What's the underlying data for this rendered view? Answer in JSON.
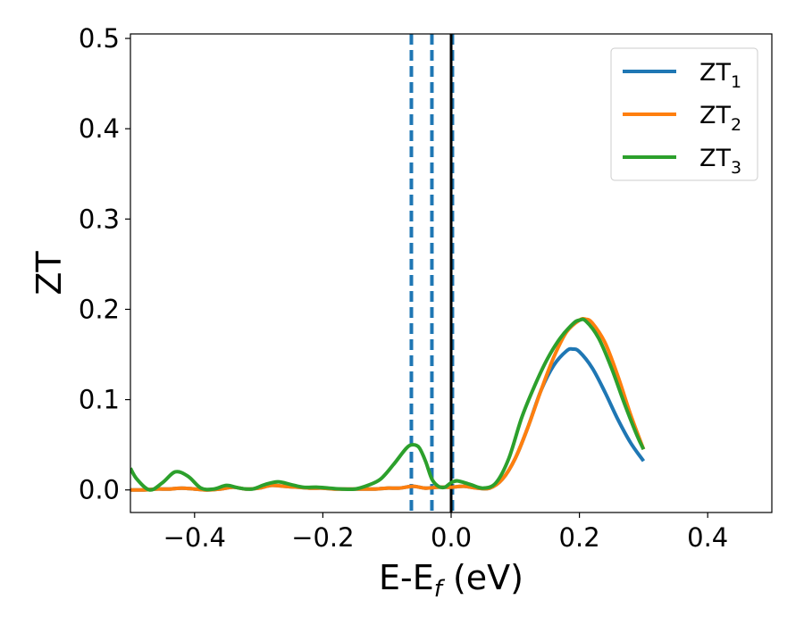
{
  "chart_data": {
    "type": "line",
    "xlabel": "E-E",
    "xlabel_sub": "f",
    "xlabel_unit": " (eV)",
    "ylabel": "ZT",
    "xlim": [
      -0.5,
      0.5
    ],
    "ylim": [
      -0.025,
      0.505
    ],
    "xticks": [
      -0.4,
      -0.2,
      0.0,
      0.2,
      0.4
    ],
    "xtick_labels": [
      "−0.4",
      "−0.2",
      "0.0",
      "0.2",
      "0.4"
    ],
    "yticks": [
      0.0,
      0.1,
      0.2,
      0.3,
      0.4,
      0.5
    ],
    "ytick_labels": [
      "0.0",
      "0.1",
      "0.2",
      "0.3",
      "0.4",
      "0.5"
    ],
    "grid": false,
    "legend_position": "top-right",
    "vertical_lines": [
      {
        "x": -0.062,
        "style": "dashed",
        "color": "#1f77b4"
      },
      {
        "x": -0.03,
        "style": "dashed",
        "color": "#1f77b4"
      },
      {
        "x": 0.002,
        "style": "dashed",
        "color": "#1f77b4"
      },
      {
        "x": 0.0,
        "style": "solid",
        "color": "#000000"
      }
    ],
    "series": [
      {
        "name": "ZT",
        "name_sub": "1",
        "color": "#1f77b4",
        "x": [
          -0.5,
          -0.48,
          -0.46,
          -0.44,
          -0.42,
          -0.4,
          -0.38,
          -0.36,
          -0.34,
          -0.32,
          -0.3,
          -0.28,
          -0.26,
          -0.24,
          -0.22,
          -0.2,
          -0.18,
          -0.16,
          -0.14,
          -0.12,
          -0.1,
          -0.08,
          -0.06,
          -0.04,
          -0.02,
          0.0,
          0.02,
          0.04,
          0.06,
          0.08,
          0.1,
          0.12,
          0.14,
          0.16,
          0.18,
          0.19,
          0.2,
          0.22,
          0.24,
          0.26,
          0.28,
          0.3
        ],
        "y": [
          0.0,
          0.0,
          0.001,
          0.001,
          0.002,
          0.001,
          0.0,
          0.001,
          0.003,
          0.001,
          0.002,
          0.005,
          0.004,
          0.003,
          0.002,
          0.002,
          0.001,
          0.001,
          0.001,
          0.001,
          0.002,
          0.002,
          0.004,
          0.002,
          0.003,
          0.003,
          0.004,
          0.002,
          0.002,
          0.012,
          0.035,
          0.07,
          0.11,
          0.138,
          0.154,
          0.156,
          0.153,
          0.135,
          0.108,
          0.078,
          0.052,
          0.032
        ]
      },
      {
        "name": "ZT",
        "name_sub": "2",
        "color": "#ff7f0e",
        "x": [
          -0.5,
          -0.48,
          -0.46,
          -0.44,
          -0.42,
          -0.4,
          -0.38,
          -0.36,
          -0.34,
          -0.32,
          -0.3,
          -0.28,
          -0.26,
          -0.24,
          -0.22,
          -0.2,
          -0.18,
          -0.16,
          -0.14,
          -0.12,
          -0.1,
          -0.08,
          -0.06,
          -0.04,
          -0.02,
          0.0,
          0.02,
          0.04,
          0.06,
          0.08,
          0.1,
          0.12,
          0.14,
          0.16,
          0.18,
          0.2,
          0.21,
          0.22,
          0.24,
          0.26,
          0.28,
          0.3
        ],
        "y": [
          0.0,
          0.0,
          0.001,
          0.001,
          0.002,
          0.001,
          0.0,
          0.001,
          0.003,
          0.001,
          0.002,
          0.005,
          0.004,
          0.003,
          0.002,
          0.002,
          0.001,
          0.001,
          0.001,
          0.001,
          0.002,
          0.002,
          0.004,
          0.002,
          0.003,
          0.003,
          0.004,
          0.002,
          0.002,
          0.012,
          0.035,
          0.07,
          0.11,
          0.147,
          0.175,
          0.188,
          0.189,
          0.185,
          0.163,
          0.126,
          0.083,
          0.045
        ]
      },
      {
        "name": "ZT",
        "name_sub": "3",
        "color": "#2ca02c",
        "x": [
          -0.5,
          -0.49,
          -0.47,
          -0.45,
          -0.43,
          -0.41,
          -0.39,
          -0.37,
          -0.35,
          -0.33,
          -0.31,
          -0.29,
          -0.27,
          -0.25,
          -0.23,
          -0.21,
          -0.19,
          -0.17,
          -0.15,
          -0.13,
          -0.11,
          -0.09,
          -0.07,
          -0.06,
          -0.05,
          -0.04,
          -0.03,
          -0.02,
          -0.01,
          0.0,
          0.01,
          0.03,
          0.05,
          0.07,
          0.09,
          0.11,
          0.13,
          0.15,
          0.17,
          0.19,
          0.2,
          0.21,
          0.23,
          0.25,
          0.27,
          0.29,
          0.3
        ],
        "y": [
          0.024,
          0.012,
          0.0,
          0.008,
          0.02,
          0.015,
          0.002,
          0.001,
          0.005,
          0.002,
          0.001,
          0.006,
          0.009,
          0.006,
          0.003,
          0.003,
          0.002,
          0.001,
          0.001,
          0.005,
          0.012,
          0.028,
          0.046,
          0.05,
          0.047,
          0.032,
          0.012,
          0.004,
          0.003,
          0.008,
          0.01,
          0.006,
          0.002,
          0.008,
          0.035,
          0.08,
          0.115,
          0.145,
          0.168,
          0.184,
          0.188,
          0.187,
          0.168,
          0.135,
          0.096,
          0.06,
          0.045
        ]
      }
    ]
  }
}
